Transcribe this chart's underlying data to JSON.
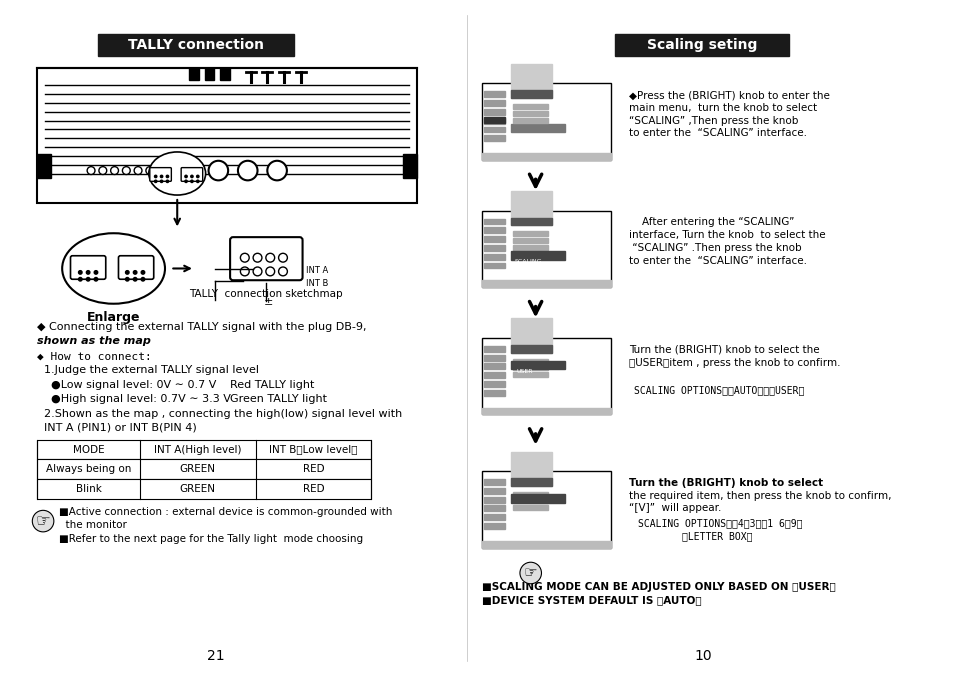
{
  "bg_color": "#ffffff",
  "left_title": "TALLY connection",
  "right_title": "Scaling seting",
  "title_bg": "#1a1a1a",
  "title_fg": "#ffffff",
  "enlarge_text": "Enlarge",
  "tally_sketch_text": "TALLY  connection sketchmap",
  "left_bullet_text1": "◆ Connecting the external TALLY signal with the plug DB-9,",
  "left_bullet_text2": "shown as the map",
  "how_to_connect": "◆ How to connect:",
  "step1": "  1.Judge the external TALLY signal level",
  "low_signal": "●Low signal level: 0V ∼ 0.7 V",
  "low_signal_right": "Red TALLY light",
  "high_signal": "●High signal level: 0.7V ∼ 3.3 V",
  "high_signal_right": "Green TALLY light",
  "step2": "  2.Shown as the map , connecting the high(low) signal level with",
  "step2b": "  INT A (PIN1) or INT B(PIN 4)",
  "table_headers": [
    "MODE",
    "INT A(High level)",
    "INT B（Low level）"
  ],
  "table_row1": [
    "Always being on",
    "GREEN",
    "RED"
  ],
  "table_row2": [
    "Blink",
    "GREEN",
    "RED"
  ],
  "note1": "■Active connection : external device is common-grounded with",
  "note1b": "  the monitor",
  "note2": "■Refer to the next page for the Tally light  mode choosing",
  "page_left": "21",
  "page_right": "10",
  "right_text1_line1": "◆Press the (BRIGHT) knob to enter the",
  "right_text1_line2": "main menu,  turn the knob to select",
  "right_text1_line3": "“SCALING” ,Then press the knob",
  "right_text1_line4": "to enter the  “SCALING” interface.",
  "right_text2_line1": "    After entering the “SCALING”",
  "right_text2_line2": "interface, Turn the knob  to select the",
  "right_text2_line3": " “SCALING” .Then press the knob",
  "right_text2_line4": "to enter the  “SCALING” interface.",
  "right_text3_line1": "Turn the (BRIGHT) knob to select the",
  "right_text3_line2": "【USER】item , press the knob to confirm.",
  "right_text3_line3": "SCALING OPTIONS：【AUTO】、【USER】",
  "right_text4_line1": "Turn the (BRIGHT) knob to select",
  "right_text4_line2": "the required item, then press the knob to confirm,",
  "right_text4_line3": "“[V]”  will appear.",
  "right_text4_line4": "SCALING OPTIONS：【4：3】【1 6：9】",
  "right_text4_line5": "【LETTER BOX】",
  "bottom_text1": "■SCALING MODE CAN BE ADJUSTED ONLY BASED ON 【USER】",
  "bottom_text2": "■DEVICE SYSTEM DEFAULT IS 【AUTO】"
}
